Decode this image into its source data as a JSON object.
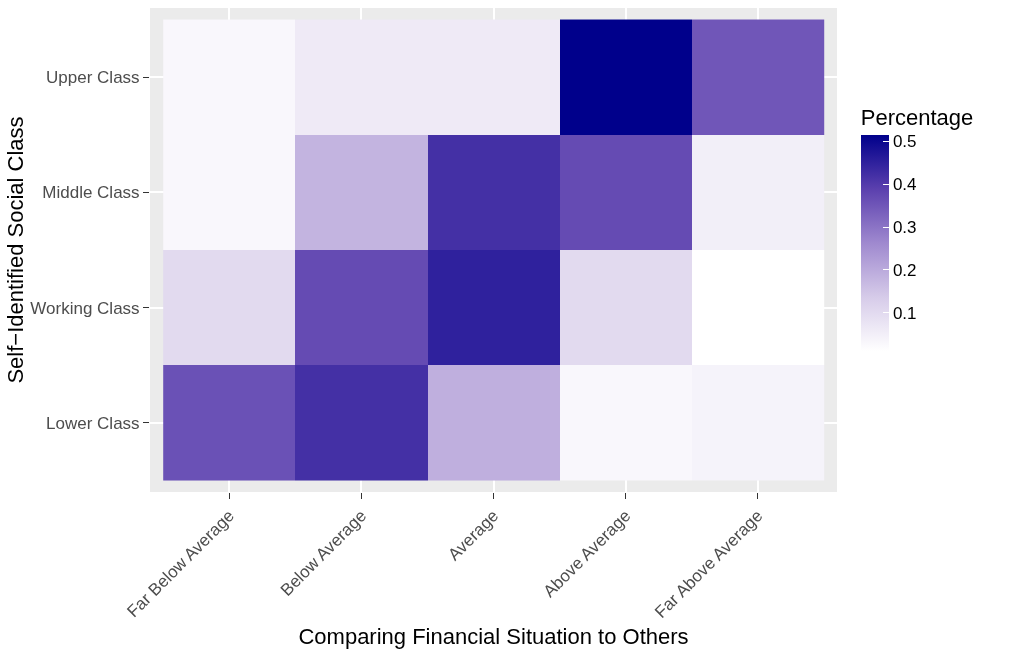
{
  "chart_data": {
    "type": "heatmap",
    "xlabel": "Comparing Financial Situation to Others",
    "ylabel": "Self−Identified Social Class",
    "clabel": "Percentage",
    "categories": [
      "Far Below Average",
      "Below Average",
      "Average",
      "Above Average",
      "Far Above Average"
    ],
    "y_categories": [
      "Upper Class",
      "Middle Class",
      "Working Class",
      "Lower Class"
    ],
    "cells": [
      [
        0.03,
        0.06,
        0.06,
        0.515,
        0.35
      ],
      [
        0.03,
        0.18,
        0.42,
        0.37,
        0.05
      ],
      [
        0.1,
        0.37,
        0.45,
        0.1,
        0.01
      ],
      [
        0.36,
        0.42,
        0.19,
        0.03,
        0.04
      ]
    ],
    "clim": [
      0.01,
      0.515
    ],
    "cticks": [
      0.1,
      0.2,
      0.3,
      0.4,
      0.5
    ]
  }
}
